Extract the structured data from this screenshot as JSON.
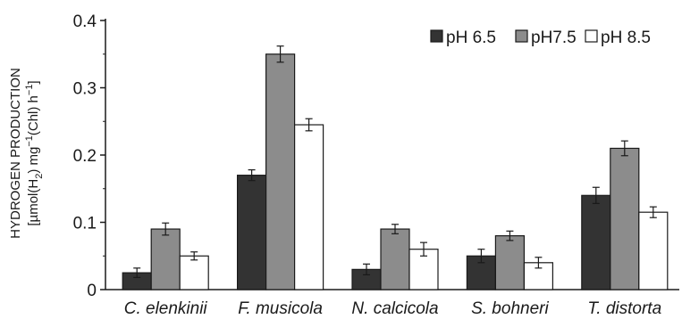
{
  "chart_data": {
    "type": "bar",
    "ylabel": {
      "line1": "HYDROGEN PRODUCTION",
      "line2_parts": [
        "[µmol(H",
        "2",
        ") mg",
        "−1",
        "(Chl) h",
        "−1",
        "]"
      ]
    },
    "ylim": [
      0,
      0.4
    ],
    "yticks": [
      "0",
      "0.1",
      "0.2",
      "0.3",
      "0.4"
    ],
    "legend_position": "top-right",
    "grid": false,
    "categories": [
      "C. elenkinii",
      "F. musicola",
      "N. calcicola",
      "S. bohneri",
      "T. distorta"
    ],
    "series": [
      {
        "name": "pH 6.5",
        "color": "#333333",
        "values": [
          0.025,
          0.17,
          0.03,
          0.05,
          0.14
        ],
        "errors": [
          0.007,
          0.008,
          0.008,
          0.01,
          0.012
        ]
      },
      {
        "name": "pH7.5",
        "color": "#8c8c8c",
        "values": [
          0.09,
          0.35,
          0.09,
          0.08,
          0.21
        ],
        "errors": [
          0.009,
          0.012,
          0.007,
          0.007,
          0.011
        ]
      },
      {
        "name": "pH 8.5",
        "color": "#ffffff",
        "values": [
          0.05,
          0.245,
          0.06,
          0.04,
          0.115
        ],
        "errors": [
          0.006,
          0.009,
          0.01,
          0.008,
          0.008
        ]
      }
    ]
  }
}
